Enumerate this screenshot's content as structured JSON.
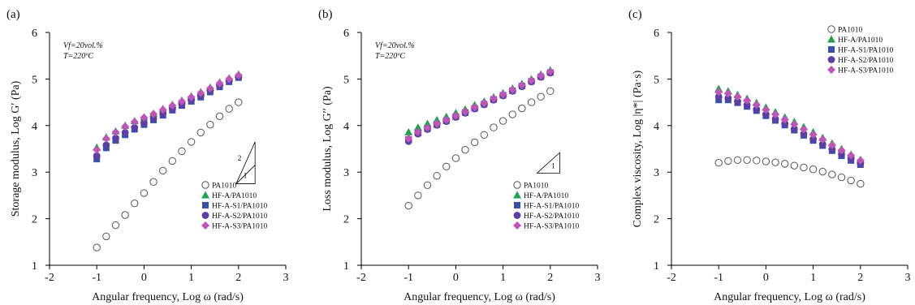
{
  "colors": {
    "PA1010": "#555555",
    "HF-A": "#1fa34a",
    "HF-A-S1": "#3b4fb0",
    "HF-A-S2": "#5b3fa6",
    "HF-A-S3": "#c154b8"
  },
  "chart_data": [
    {
      "type": "scatter",
      "panel_label": "(a)",
      "xlabel": "Angular frequency, Log ω (rad/s)",
      "ylabel": "Storage modulus, Log G′ (Pa)",
      "xlim": [
        -2,
        3
      ],
      "ylim": [
        1,
        6
      ],
      "xticks": [
        -2,
        -1,
        0,
        1,
        2,
        3
      ],
      "yticks": [
        1,
        2,
        3,
        4,
        5,
        6
      ],
      "conditions": [
        "Vf=20vol.%",
        "T=220ºC"
      ],
      "slope_annotation": {
        "type": "triangle",
        "labels": [
          "2",
          "1"
        ]
      },
      "legend": "bottom-right",
      "x": [
        -1.0,
        -0.8,
        -0.6,
        -0.4,
        -0.2,
        0.0,
        0.2,
        0.4,
        0.6,
        0.8,
        1.0,
        1.2,
        1.4,
        1.6,
        1.8,
        2.0
      ],
      "series": [
        {
          "name": "PA1010",
          "marker": "circle-open",
          "values": [
            1.38,
            1.62,
            1.86,
            2.08,
            2.33,
            2.55,
            2.79,
            3.03,
            3.24,
            3.45,
            3.65,
            3.85,
            4.02,
            4.2,
            4.36,
            4.5
          ]
        },
        {
          "name": "HF-A/PA1010",
          "marker": "triangle",
          "values": [
            3.53,
            3.75,
            3.88,
            4.0,
            4.1,
            4.18,
            4.26,
            4.36,
            4.45,
            4.54,
            4.63,
            4.72,
            4.82,
            4.93,
            5.02,
            5.1
          ]
        },
        {
          "name": "HF-A-S1/PA1010",
          "marker": "square",
          "values": [
            3.28,
            3.52,
            3.68,
            3.8,
            3.92,
            4.02,
            4.12,
            4.22,
            4.33,
            4.43,
            4.52,
            4.61,
            4.72,
            4.83,
            4.94,
            5.03
          ]
        },
        {
          "name": "HF-A-S2/PA1010",
          "marker": "circle",
          "values": [
            3.35,
            3.58,
            3.73,
            3.85,
            3.96,
            4.06,
            4.15,
            4.25,
            4.36,
            4.46,
            4.55,
            4.64,
            4.75,
            4.86,
            4.96,
            5.05
          ]
        },
        {
          "name": "HF-A-S3/PA1010",
          "marker": "diamond",
          "values": [
            3.48,
            3.72,
            3.86,
            3.98,
            4.08,
            4.17,
            4.25,
            4.34,
            4.43,
            4.52,
            4.61,
            4.7,
            4.8,
            4.91,
            5.0,
            5.08
          ]
        }
      ]
    },
    {
      "type": "scatter",
      "panel_label": "(b)",
      "xlabel": "Angular frequency, Log ω (rad/s)",
      "ylabel": "Loss modulus, Log G′′ (Pa)",
      "xlim": [
        -2,
        3
      ],
      "ylim": [
        1,
        6
      ],
      "xticks": [
        -2,
        -1,
        0,
        1,
        2,
        3
      ],
      "yticks": [
        1,
        2,
        3,
        4,
        5,
        6
      ],
      "conditions": [
        "Vf=20vol.%",
        "T=220ºC"
      ],
      "slope_annotation": {
        "type": "triangle",
        "labels": [
          "1"
        ]
      },
      "legend": "bottom-right",
      "x": [
        -1.0,
        -0.8,
        -0.6,
        -0.4,
        -0.2,
        0.0,
        0.2,
        0.4,
        0.6,
        0.8,
        1.0,
        1.2,
        1.4,
        1.6,
        1.8,
        2.0
      ],
      "series": [
        {
          "name": "PA1010",
          "marker": "circle-open",
          "values": [
            2.28,
            2.5,
            2.72,
            2.92,
            3.12,
            3.3,
            3.48,
            3.64,
            3.8,
            3.96,
            4.1,
            4.24,
            4.37,
            4.5,
            4.62,
            4.74
          ]
        },
        {
          "name": "HF-A/PA1010",
          "marker": "triangle",
          "values": [
            3.86,
            3.96,
            4.04,
            4.12,
            4.19,
            4.27,
            4.35,
            4.44,
            4.52,
            4.61,
            4.7,
            4.8,
            4.9,
            5.0,
            5.1,
            5.19
          ]
        },
        {
          "name": "HF-A-S1/PA1010",
          "marker": "square",
          "values": [
            3.7,
            3.84,
            3.93,
            4.02,
            4.1,
            4.19,
            4.28,
            4.37,
            4.46,
            4.56,
            4.65,
            4.75,
            4.85,
            4.95,
            5.05,
            5.14
          ]
        },
        {
          "name": "HF-A-S2/PA1010",
          "marker": "circle",
          "values": [
            3.66,
            3.82,
            3.92,
            4.01,
            4.09,
            4.18,
            4.27,
            4.36,
            4.45,
            4.55,
            4.64,
            4.74,
            4.84,
            4.94,
            5.04,
            5.13
          ]
        },
        {
          "name": "HF-A-S3/PA1010",
          "marker": "diamond",
          "values": [
            3.72,
            3.86,
            3.95,
            4.04,
            4.12,
            4.21,
            4.3,
            4.39,
            4.48,
            4.58,
            4.67,
            4.77,
            4.87,
            4.97,
            5.07,
            5.16
          ]
        }
      ]
    },
    {
      "type": "scatter",
      "panel_label": "(c)",
      "xlabel": "Angular frequency, Log ω (rad/s)",
      "ylabel": "Complex viscosity, Log |η*| (Pa·s)",
      "xlim": [
        -2,
        3
      ],
      "ylim": [
        1,
        6
      ],
      "xticks": [
        -2,
        -1,
        0,
        1,
        2,
        3
      ],
      "yticks": [
        1,
        2,
        3,
        4,
        5,
        6
      ],
      "legend": "top-right",
      "x": [
        -1.0,
        -0.8,
        -0.6,
        -0.4,
        -0.2,
        0.0,
        0.2,
        0.4,
        0.6,
        0.8,
        1.0,
        1.2,
        1.4,
        1.6,
        1.8,
        2.0
      ],
      "series": [
        {
          "name": "PA1010",
          "marker": "circle-open",
          "values": [
            3.2,
            3.24,
            3.26,
            3.26,
            3.25,
            3.23,
            3.21,
            3.18,
            3.14,
            3.1,
            3.06,
            3.01,
            2.95,
            2.89,
            2.82,
            2.75
          ]
        },
        {
          "name": "HF-A/PA1010",
          "marker": "triangle",
          "values": [
            4.79,
            4.74,
            4.66,
            4.58,
            4.49,
            4.39,
            4.29,
            4.18,
            4.08,
            3.97,
            3.86,
            3.74,
            3.62,
            3.5,
            3.38,
            3.27
          ]
        },
        {
          "name": "HF-A-S1/PA1010",
          "marker": "square",
          "values": [
            4.55,
            4.55,
            4.49,
            4.41,
            4.32,
            4.21,
            4.11,
            4.01,
            3.9,
            3.79,
            3.68,
            3.57,
            3.46,
            3.35,
            3.25,
            3.16
          ]
        },
        {
          "name": "HF-A-S2/PA1010",
          "marker": "circle",
          "values": [
            4.62,
            4.59,
            4.52,
            4.44,
            4.35,
            4.24,
            4.14,
            4.04,
            3.93,
            3.82,
            3.71,
            3.6,
            3.49,
            3.38,
            3.28,
            3.18
          ]
        },
        {
          "name": "HF-A-S3/PA1010",
          "marker": "diamond",
          "values": [
            4.72,
            4.69,
            4.62,
            4.54,
            4.45,
            4.34,
            4.24,
            4.13,
            4.03,
            3.92,
            3.81,
            3.7,
            3.58,
            3.47,
            3.36,
            3.25
          ]
        }
      ]
    }
  ]
}
